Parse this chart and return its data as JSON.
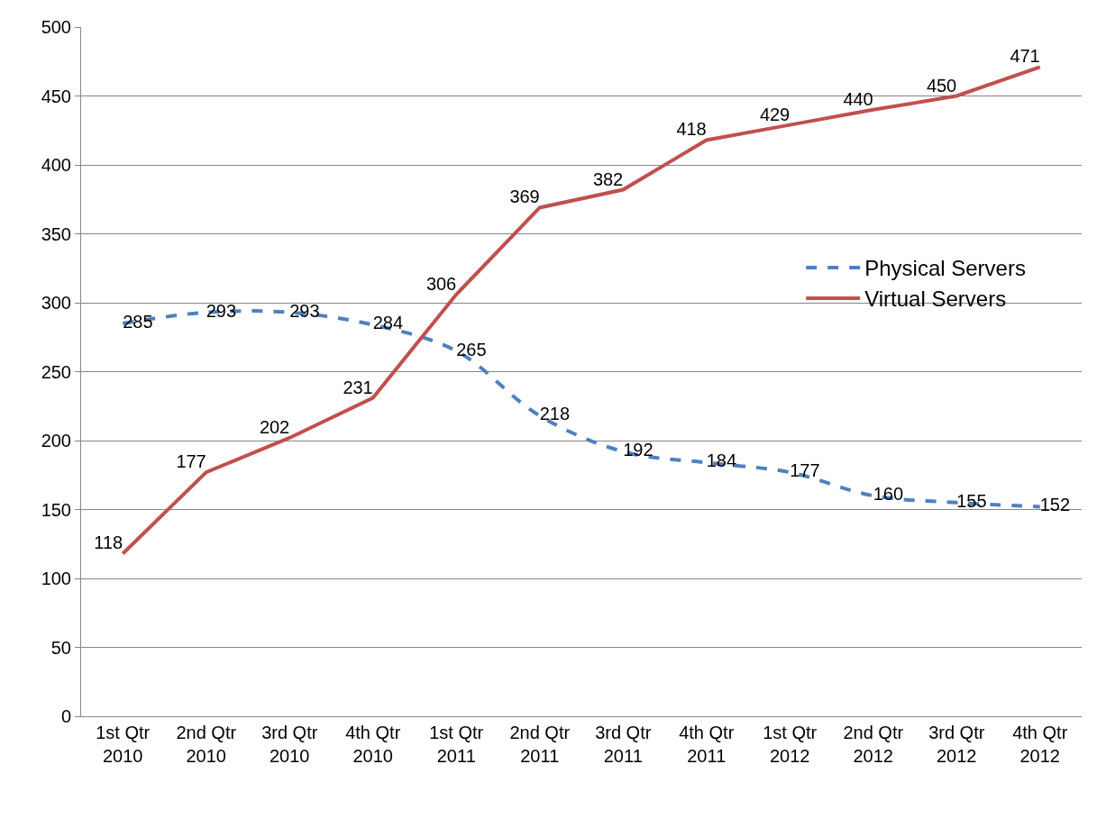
{
  "chart_data": {
    "type": "line",
    "categories": [
      "1st Qtr\n2010",
      "2nd Qtr\n2010",
      "3rd Qtr\n2010",
      "4th Qtr\n2010",
      "1st Qtr\n2011",
      "2nd Qtr\n2011",
      "3rd Qtr\n2011",
      "4th Qtr\n2011",
      "1st Qtr\n2012",
      "2nd Qtr\n2012",
      "3rd Qtr\n2012",
      "4th Qtr\n2012"
    ],
    "series": [
      {
        "name": "Physical Servers",
        "color": "#4f81bd",
        "line_style": "dashed",
        "values": [
          285,
          293,
          293,
          284,
          265,
          218,
          192,
          184,
          177,
          160,
          155,
          152
        ]
      },
      {
        "name": "Virtual Servers",
        "color": "#c0504d",
        "line_style": "solid",
        "values": [
          118,
          177,
          202,
          231,
          306,
          369,
          382,
          418,
          429,
          440,
          450,
          471
        ]
      }
    ],
    "ylim": [
      0,
      500
    ],
    "yticks": [
      0,
      50,
      100,
      150,
      200,
      250,
      300,
      350,
      400,
      450,
      500
    ],
    "grid": "y",
    "legend": "right",
    "marker": "none",
    "data_labels": true
  }
}
